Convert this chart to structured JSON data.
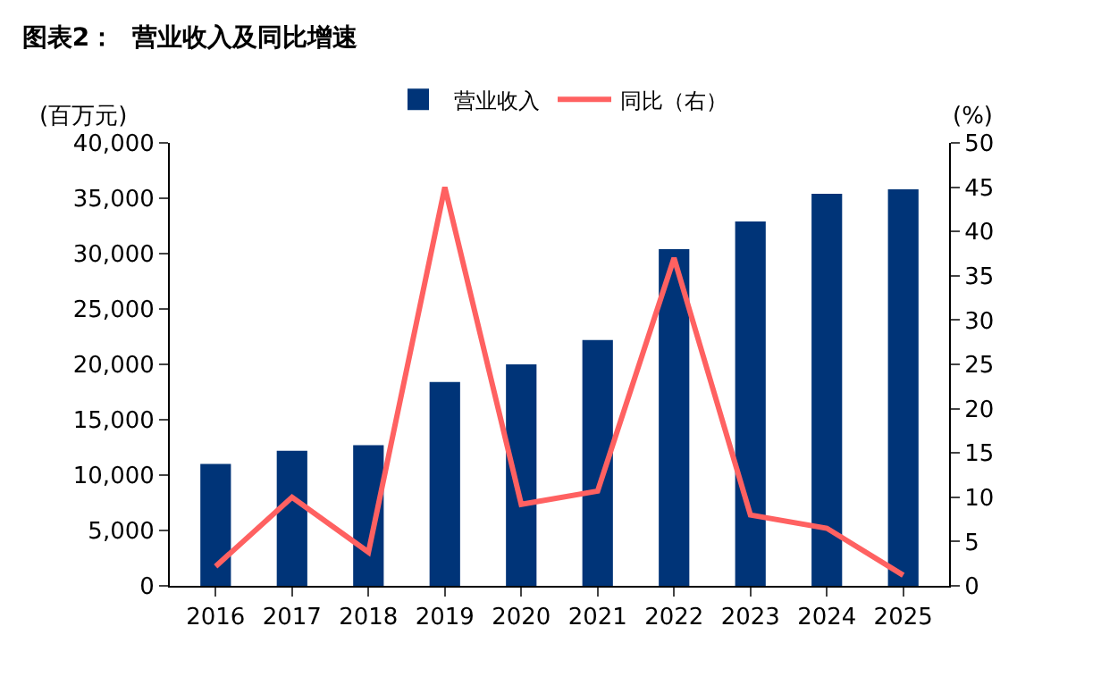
{
  "chart_data": {
    "type": "bar",
    "title": "图表2：  营业收入及同比增速",
    "ylabel": "(百万元)",
    "y2label": "(%)",
    "categories": [
      "2016",
      "2017",
      "2018",
      "2019",
      "2020",
      "2021",
      "2022",
      "2023",
      "2024",
      "2025"
    ],
    "series": [
      {
        "name": "营业收入",
        "color": "#003478",
        "values": [
          11000,
          12200,
          12700,
          18400,
          20000,
          22200,
          30400,
          32900,
          35400,
          35800
        ]
      },
      {
        "name": "同比（右）",
        "type": "line",
        "axis": "y2",
        "color": "#ff6161",
        "values": [
          2.2,
          10,
          3.8,
          45,
          9.2,
          10.7,
          37,
          8,
          6.5,
          1.2
        ]
      }
    ],
    "ylim": [
      0,
      40000
    ],
    "yticks": [
      {
        "value": 0,
        "label": "0"
      },
      {
        "value": 5000,
        "label": "5,000"
      },
      {
        "value": 10000,
        "label": "10,000"
      },
      {
        "value": 15000,
        "label": "15,000"
      },
      {
        "value": 20000,
        "label": "20,000"
      },
      {
        "value": 25000,
        "label": "25,000"
      },
      {
        "value": 30000,
        "label": "30,000"
      },
      {
        "value": 35000,
        "label": "35,000"
      },
      {
        "value": 40000,
        "label": "40,000"
      }
    ],
    "y2lim": [
      0,
      50
    ],
    "y2ticks": [
      0,
      5,
      10,
      15,
      20,
      25,
      30,
      35,
      40,
      45,
      50
    ],
    "legend": "top",
    "marker": "none",
    "line_style": "solid"
  }
}
